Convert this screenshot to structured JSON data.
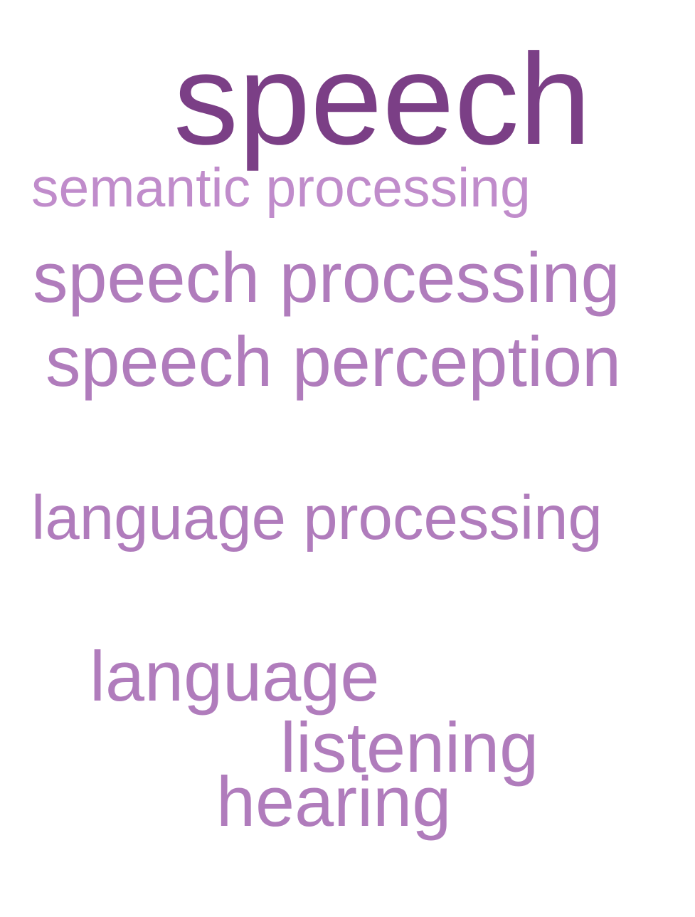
{
  "word_cloud": {
    "words": [
      {
        "text": "speech",
        "color": "#7b3f86"
      },
      {
        "text": "semantic processing",
        "color": "#c08ccb"
      },
      {
        "text": "speech processing",
        "color": "#b07cbc"
      },
      {
        "text": "speech perception",
        "color": "#b07cbc"
      },
      {
        "text": "language processing",
        "color": "#b07cbc"
      },
      {
        "text": "language",
        "color": "#b07cbc"
      },
      {
        "text": "listening",
        "color": "#b07cbc"
      },
      {
        "text": "hearing",
        "color": "#b07cbc"
      }
    ]
  }
}
